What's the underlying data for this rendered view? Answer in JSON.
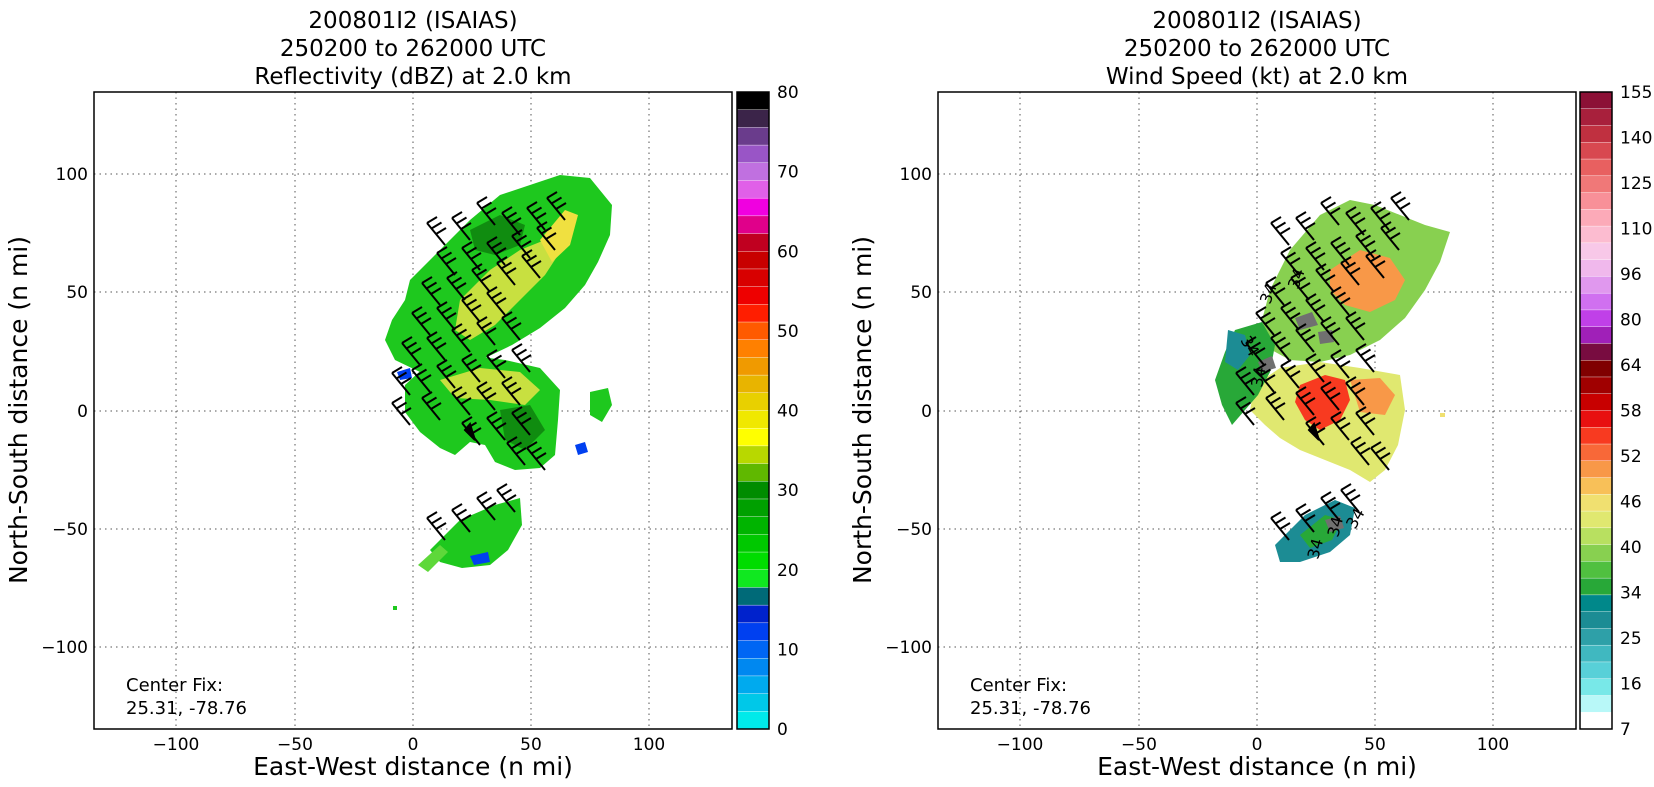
{
  "panels": [
    {
      "title_lines": [
        "200801I2 (ISAIAS)",
        "250200 to 262000 UTC",
        "Reflectivity (dBZ) at 2.0 km"
      ],
      "xlabel": "East-West distance (n mi)",
      "ylabel": "North-South distance (n mi)",
      "center_fix_label": "Center Fix:",
      "center_fix_value": "25.31, -78.76",
      "x_ticks": [
        "−100",
        "−50",
        "0",
        "50",
        "100"
      ],
      "y_ticks": [
        "100",
        "50",
        "0",
        "−50",
        "−100"
      ],
      "colorbar_ticks": [
        "80",
        "70",
        "60",
        "50",
        "40",
        "30",
        "20",
        "10",
        "0"
      ],
      "colorbar_colors": [
        "#000000",
        "#3b2449",
        "#6a3c8c",
        "#9955c6",
        "#c070e0",
        "#e060e8",
        "#f000e0",
        "#e0008a",
        "#c00020",
        "#c80000",
        "#d80000",
        "#ee0000",
        "#ff1e00",
        "#ff5a00",
        "#ff8000",
        "#f09a00",
        "#e8b400",
        "#e8d000",
        "#f0e800",
        "#ffff00",
        "#b8d800",
        "#60b800",
        "#008c00",
        "#00a000",
        "#00b400",
        "#00c800",
        "#00dc00",
        "#10e820",
        "#006a78",
        "#0022cc",
        "#0040f0",
        "#0066f4",
        "#0088f0",
        "#00aaee",
        "#00c8e8",
        "#00eaea"
      ],
      "overlay_colors": [
        "#1ec81e",
        "#5ed83a",
        "#c8e040",
        "#f0e040",
        "#108c10",
        "#0040f0"
      ],
      "contour_labels": []
    },
    {
      "title_lines": [
        "200801I2 (ISAIAS)",
        "250200 to 262000 UTC",
        "Wind Speed (kt) at 2.0 km"
      ],
      "xlabel": "East-West distance (n mi)",
      "ylabel": "North-South distance (n mi)",
      "center_fix_label": "Center Fix:",
      "center_fix_value": "25.31, -78.76",
      "x_ticks": [
        "−100",
        "−50",
        "0",
        "50",
        "100"
      ],
      "y_ticks": [
        "100",
        "50",
        "0",
        "−50",
        "−100"
      ],
      "colorbar_ticks": [
        "155",
        "140",
        "125",
        "110",
        "96",
        "80",
        "64",
        "58",
        "52",
        "46",
        "40",
        "34",
        "25",
        "16",
        "7"
      ],
      "colorbar_colors": [
        "#8c1036",
        "#a8203c",
        "#c03040",
        "#d84850",
        "#e86060",
        "#f07878",
        "#f89098",
        "#fcaab8",
        "#fcbcd0",
        "#f8c8e8",
        "#f0b8ec",
        "#e098ee",
        "#d070f0",
        "#c040e8",
        "#a020b8",
        "#780c40",
        "#800000",
        "#a00000",
        "#c80000",
        "#e81010",
        "#f83a20",
        "#f86838",
        "#f89848",
        "#f8c058",
        "#f0e070",
        "#e0e870",
        "#b8e060",
        "#88d050",
        "#50c040",
        "#28a838",
        "#00888a",
        "#1c8c94",
        "#2ea0a8",
        "#40b8c0",
        "#58d0d8",
        "#78e8e8",
        "#b8f8f8",
        "#ffffff"
      ],
      "overlay_colors": [
        "#88d050",
        "#e0e870",
        "#f89848",
        "#f83a20",
        "#28a838",
        "#1c8c94",
        "#707070"
      ],
      "contour_labels": [
        "34",
        "34",
        "34",
        "34",
        "34",
        "34",
        "34"
      ]
    }
  ]
}
